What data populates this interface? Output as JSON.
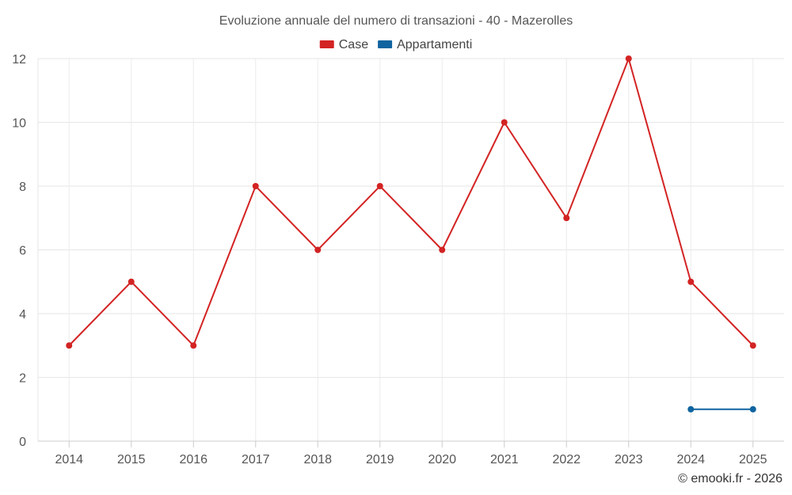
{
  "chart_data": {
    "type": "line",
    "title": "Evoluzione annuale del numero di transazioni - 40 - Mazerolles",
    "categories": [
      "2014",
      "2015",
      "2016",
      "2017",
      "2018",
      "2019",
      "2020",
      "2021",
      "2022",
      "2023",
      "2024",
      "2025"
    ],
    "series": [
      {
        "name": "Case",
        "color": "#d32323",
        "values": [
          3,
          5,
          3,
          8,
          6,
          8,
          6,
          10,
          7,
          12,
          5,
          3
        ]
      },
      {
        "name": "Appartamenti",
        "color": "#0f64a0",
        "values": [
          null,
          null,
          null,
          null,
          null,
          null,
          null,
          null,
          null,
          null,
          1,
          1
        ]
      }
    ],
    "ylim": [
      0,
      12
    ],
    "yticks": [
      0,
      2,
      4,
      6,
      8,
      10,
      12
    ],
    "grid": true,
    "legend": "top-center"
  },
  "credit": "© emooki.fr - 2026"
}
